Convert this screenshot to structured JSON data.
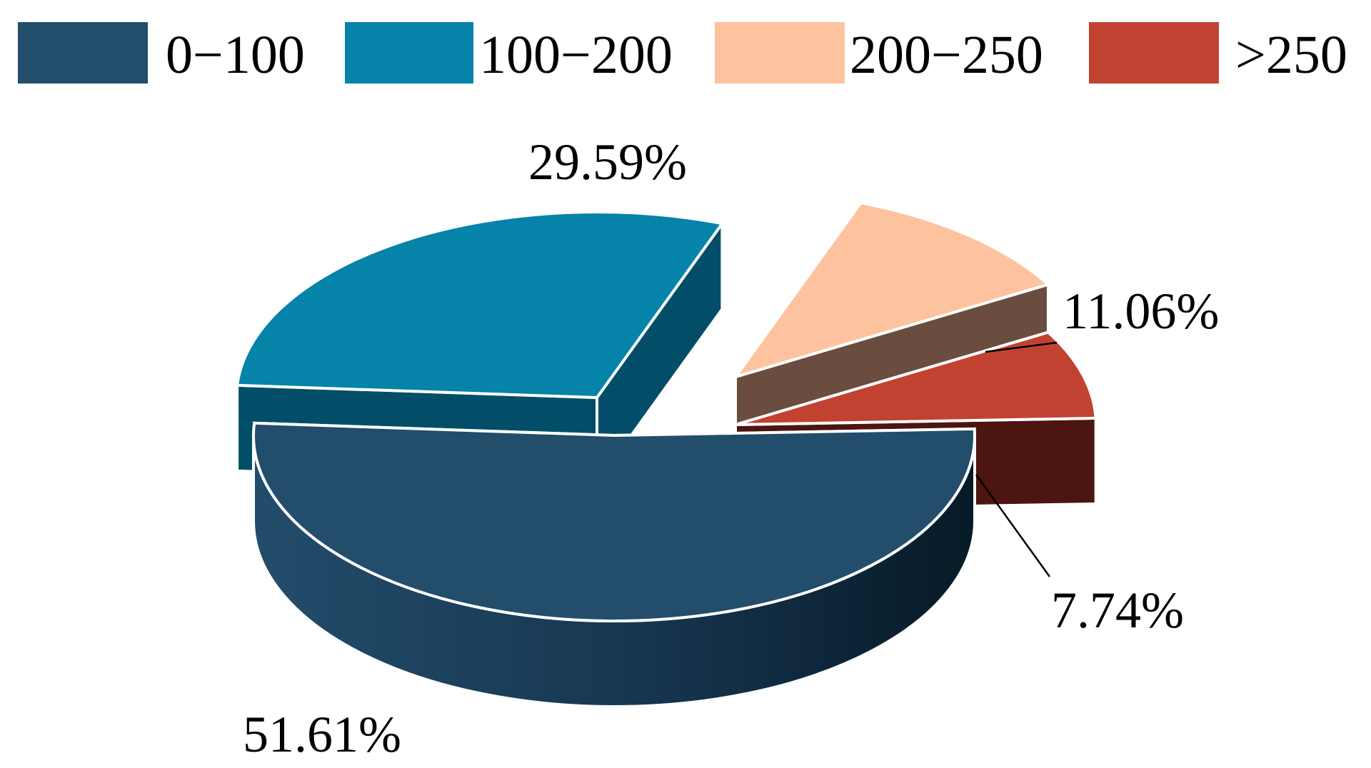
{
  "chart_data": {
    "type": "pie",
    "style": "3d-exploded",
    "title": "",
    "legend_position": "top",
    "slices": [
      {
        "label": "0−100",
        "value": 51.61,
        "value_label": "51.61%",
        "color": "#224d6b",
        "side_color": "#163550"
      },
      {
        "label": "100−200",
        "value": 29.59,
        "value_label": "29.59%",
        "color": "#0583a9",
        "side_color": "#024e68"
      },
      {
        "label": "200−250",
        "value": 11.06,
        "value_label": "11.06%",
        "color": "#fdc39f",
        "side_color": "#6b4d3f"
      },
      {
        "label": ">250",
        "value": 7.74,
        "value_label": "7.74%",
        "color": "#c24232",
        "side_color": "#4c1510"
      }
    ]
  }
}
